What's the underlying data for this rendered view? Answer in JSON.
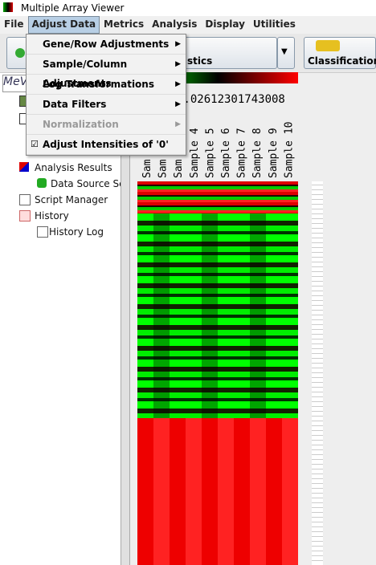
{
  "window": {
    "title": "Multiple Array Viewer"
  },
  "menu": [
    "File",
    "Adjust Data",
    "Metrics",
    "Analysis",
    "Display",
    "Utilities"
  ],
  "active_menu": 1,
  "dropdown": [
    {
      "label": "Gene/Row Adjustments",
      "enabled": true,
      "submenu": true,
      "checked": false
    },
    {
      "label": "Sample/Column Adjustments",
      "enabled": true,
      "submenu": true,
      "checked": false
    },
    {
      "label": "Log Transformations",
      "enabled": true,
      "submenu": true,
      "checked": false
    },
    {
      "label": "Data Filters",
      "enabled": true,
      "submenu": true,
      "checked": false
    },
    {
      "label": "Normalization",
      "enabled": false,
      "submenu": true,
      "checked": false
    },
    {
      "label": "Adjust Intensities of '0'",
      "enabled": true,
      "submenu": false,
      "checked": true
    }
  ],
  "toolbar": {
    "statistics": "stics",
    "classification": "Classification"
  },
  "tree": {
    "logo": "MeV",
    "analysis_results": "Analysis Results",
    "data_source": "Data Source Se",
    "script_manager": "Script Manager",
    "history": "History",
    "history_log": "History Log"
  },
  "viewer": {
    "scale_label": "0.02612301743008",
    "samples": [
      "Sam",
      "Sam",
      "Sam",
      "Sample 4",
      "Sample 5",
      "Sample 6",
      "Sample 7",
      "Sample 8",
      "Sample 9",
      "Sample 10"
    ]
  }
}
